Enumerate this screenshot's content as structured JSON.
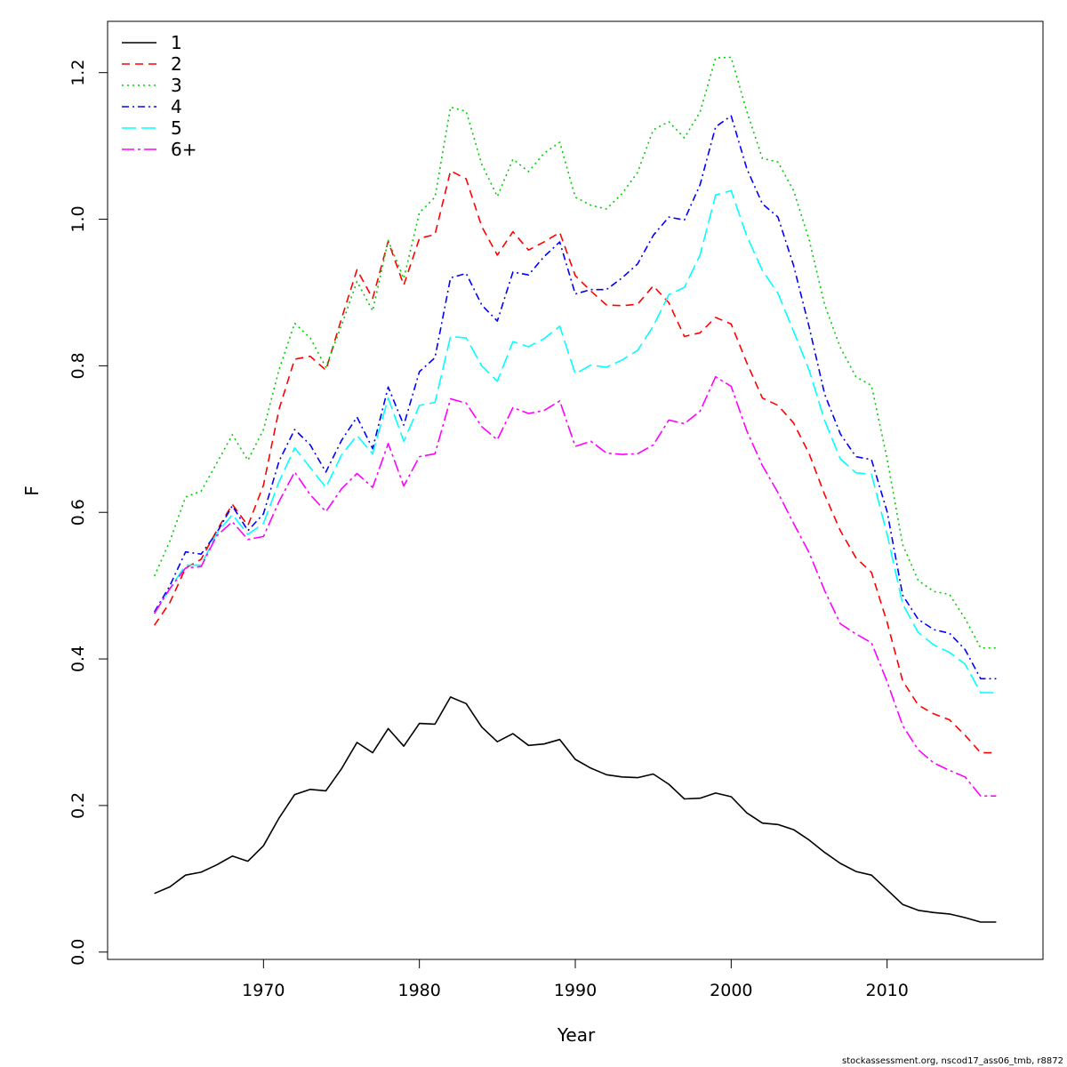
{
  "chart_data": {
    "type": "line",
    "title": "",
    "xlabel": "Year",
    "ylabel": "F",
    "xlim": [
      1960,
      2020
    ],
    "ylim": [
      -0.01,
      1.27
    ],
    "xticks": [
      1970,
      1980,
      1990,
      2000,
      2010
    ],
    "yticks": [
      0.0,
      0.2,
      0.4,
      0.6,
      0.8,
      1.0,
      1.2
    ],
    "ytick_labels": [
      "0.0",
      "0.2",
      "0.4",
      "0.6",
      "0.8",
      "1.0",
      "1.2"
    ],
    "legend_position": "top-left",
    "grid": false,
    "x": [
      1963,
      1964,
      1965,
      1966,
      1967,
      1968,
      1969,
      1970,
      1971,
      1972,
      1973,
      1974,
      1975,
      1976,
      1977,
      1978,
      1979,
      1980,
      1981,
      1982,
      1983,
      1984,
      1985,
      1986,
      1987,
      1988,
      1989,
      1990,
      1991,
      1992,
      1993,
      1994,
      1995,
      1996,
      1997,
      1998,
      1999,
      2000,
      2001,
      2002,
      2003,
      2004,
      2005,
      2006,
      2007,
      2008,
      2009,
      2010,
      2011,
      2012,
      2013,
      2014,
      2015,
      2016,
      2017
    ],
    "series": [
      {
        "name": "1",
        "color": "#000000",
        "dash": "",
        "values": [
          0.08,
          0.089,
          0.105,
          0.109,
          0.119,
          0.131,
          0.124,
          0.145,
          0.183,
          0.215,
          0.222,
          0.22,
          0.25,
          0.286,
          0.272,
          0.305,
          0.281,
          0.312,
          0.311,
          0.348,
          0.339,
          0.307,
          0.287,
          0.298,
          0.282,
          0.284,
          0.29,
          0.263,
          0.251,
          0.242,
          0.239,
          0.238,
          0.243,
          0.229,
          0.209,
          0.21,
          0.217,
          0.212,
          0.19,
          0.176,
          0.174,
          0.167,
          0.153,
          0.136,
          0.121,
          0.11,
          0.105,
          0.085,
          0.065,
          0.057,
          0.054,
          0.052,
          0.047,
          0.041,
          0.041
        ]
      },
      {
        "name": "2",
        "color": "#ff0000",
        "dash": "9,6",
        "values": [
          0.446,
          0.477,
          0.524,
          0.536,
          0.575,
          0.611,
          0.582,
          0.637,
          0.741,
          0.809,
          0.813,
          0.794,
          0.864,
          0.931,
          0.892,
          0.97,
          0.91,
          0.974,
          0.979,
          1.066,
          1.055,
          0.99,
          0.951,
          0.983,
          0.958,
          0.969,
          0.982,
          0.923,
          0.902,
          0.883,
          0.882,
          0.884,
          0.909,
          0.886,
          0.84,
          0.845,
          0.866,
          0.857,
          0.804,
          0.756,
          0.746,
          0.722,
          0.68,
          0.624,
          0.575,
          0.538,
          0.518,
          0.45,
          0.37,
          0.337,
          0.325,
          0.317,
          0.296,
          0.272,
          0.272
        ]
      },
      {
        "name": "3",
        "color": "#00cd00",
        "dash": "2,4",
        "values": [
          0.513,
          0.561,
          0.621,
          0.629,
          0.667,
          0.706,
          0.671,
          0.713,
          0.795,
          0.858,
          0.838,
          0.798,
          0.855,
          0.915,
          0.875,
          0.971,
          0.919,
          1.009,
          1.03,
          1.153,
          1.147,
          1.075,
          1.031,
          1.082,
          1.065,
          1.09,
          1.105,
          1.03,
          1.019,
          1.014,
          1.035,
          1.064,
          1.122,
          1.133,
          1.111,
          1.146,
          1.22,
          1.221,
          1.147,
          1.083,
          1.078,
          1.039,
          0.972,
          0.883,
          0.825,
          0.785,
          0.773,
          0.673,
          0.556,
          0.507,
          0.492,
          0.488,
          0.455,
          0.415,
          0.415
        ]
      },
      {
        "name": "4",
        "color": "#0000ff",
        "dash": "8,4,2,4",
        "values": [
          0.464,
          0.5,
          0.546,
          0.543,
          0.572,
          0.609,
          0.575,
          0.598,
          0.67,
          0.713,
          0.692,
          0.655,
          0.698,
          0.73,
          0.687,
          0.771,
          0.719,
          0.792,
          0.811,
          0.92,
          0.926,
          0.883,
          0.861,
          0.928,
          0.924,
          0.949,
          0.969,
          0.898,
          0.904,
          0.904,
          0.92,
          0.939,
          0.978,
          1.003,
          0.999,
          1.047,
          1.126,
          1.141,
          1.069,
          1.021,
          1.003,
          0.937,
          0.853,
          0.761,
          0.707,
          0.676,
          0.672,
          0.601,
          0.487,
          0.454,
          0.44,
          0.435,
          0.413,
          0.373,
          0.373
        ]
      },
      {
        "name": "5",
        "color": "#00ffff",
        "dash": "16,6",
        "values": [
          0.462,
          0.496,
          0.528,
          0.528,
          0.571,
          0.597,
          0.57,
          0.585,
          0.642,
          0.688,
          0.661,
          0.634,
          0.678,
          0.705,
          0.68,
          0.756,
          0.697,
          0.746,
          0.75,
          0.84,
          0.838,
          0.8,
          0.779,
          0.833,
          0.826,
          0.837,
          0.854,
          0.789,
          0.801,
          0.798,
          0.808,
          0.821,
          0.854,
          0.897,
          0.907,
          0.951,
          1.033,
          1.039,
          0.977,
          0.93,
          0.899,
          0.847,
          0.794,
          0.725,
          0.673,
          0.654,
          0.652,
          0.57,
          0.475,
          0.436,
          0.419,
          0.409,
          0.393,
          0.354,
          0.354
        ]
      },
      {
        "name": "6+",
        "color": "#ff00ff",
        "dash": "14,4,3,4",
        "values": [
          0.462,
          0.496,
          0.524,
          0.526,
          0.568,
          0.587,
          0.563,
          0.567,
          0.615,
          0.655,
          0.624,
          0.601,
          0.632,
          0.653,
          0.634,
          0.694,
          0.636,
          0.676,
          0.68,
          0.755,
          0.749,
          0.717,
          0.699,
          0.743,
          0.735,
          0.739,
          0.752,
          0.69,
          0.697,
          0.681,
          0.679,
          0.68,
          0.692,
          0.726,
          0.721,
          0.738,
          0.785,
          0.772,
          0.711,
          0.664,
          0.627,
          0.585,
          0.545,
          0.493,
          0.448,
          0.434,
          0.422,
          0.369,
          0.309,
          0.276,
          0.258,
          0.248,
          0.239,
          0.213,
          0.213
        ]
      }
    ]
  },
  "footer_text": "stockassessment.org, nscod17_ass06_tmb, r8872"
}
